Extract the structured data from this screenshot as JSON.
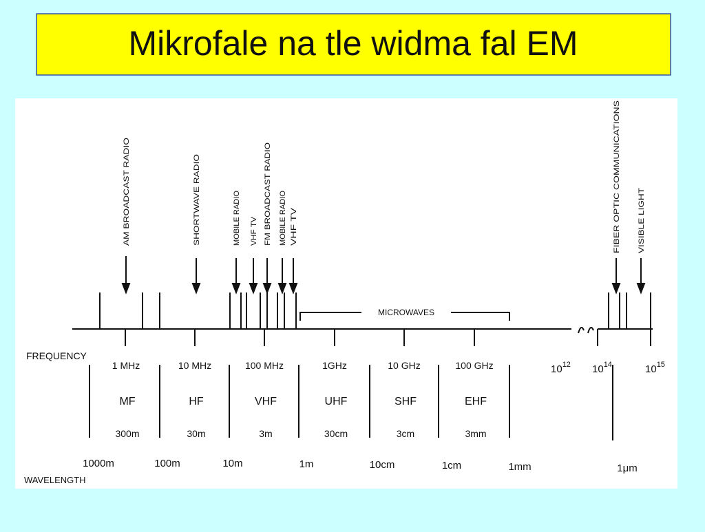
{
  "title": "Mikrofale na tle widma fal EM",
  "applications": [
    "AM BROADCAST RADIO",
    "SHORTWAVE RADIO",
    "MOBILE RADIO",
    "VHF TV",
    "FM BROADCAST RADIO",
    "MOBILE RADIO",
    "VHF TV",
    "FIBER OPTIC COMMUNICATIONS",
    "VISIBLE LIGHT"
  ],
  "microwaves_label": "MICROWAVES",
  "frequency_label": "FREQUENCY",
  "frequencies": [
    "1 MHz",
    "10 MHz",
    "100 MHz",
    "1GHz",
    "10 GHz",
    "100 GHz"
  ],
  "high_frequencies": [
    {
      "base": "10",
      "exp": "12"
    },
    {
      "base": "10",
      "exp": "14"
    },
    {
      "base": "10",
      "exp": "15"
    }
  ],
  "bands": [
    {
      "name": "MF",
      "wavelength": "300m"
    },
    {
      "name": "HF",
      "wavelength": "30m"
    },
    {
      "name": "VHF",
      "wavelength": "3m"
    },
    {
      "name": "UHF",
      "wavelength": "30cm"
    },
    {
      "name": "SHF",
      "wavelength": "3cm"
    },
    {
      "name": "EHF",
      "wavelength": "3mm"
    }
  ],
  "wavelengths": [
    "1000m",
    "100m",
    "10m",
    "1m",
    "10cm",
    "1cm",
    "1mm",
    "1μm"
  ],
  "wavelength_label": "WAVELENGTH"
}
